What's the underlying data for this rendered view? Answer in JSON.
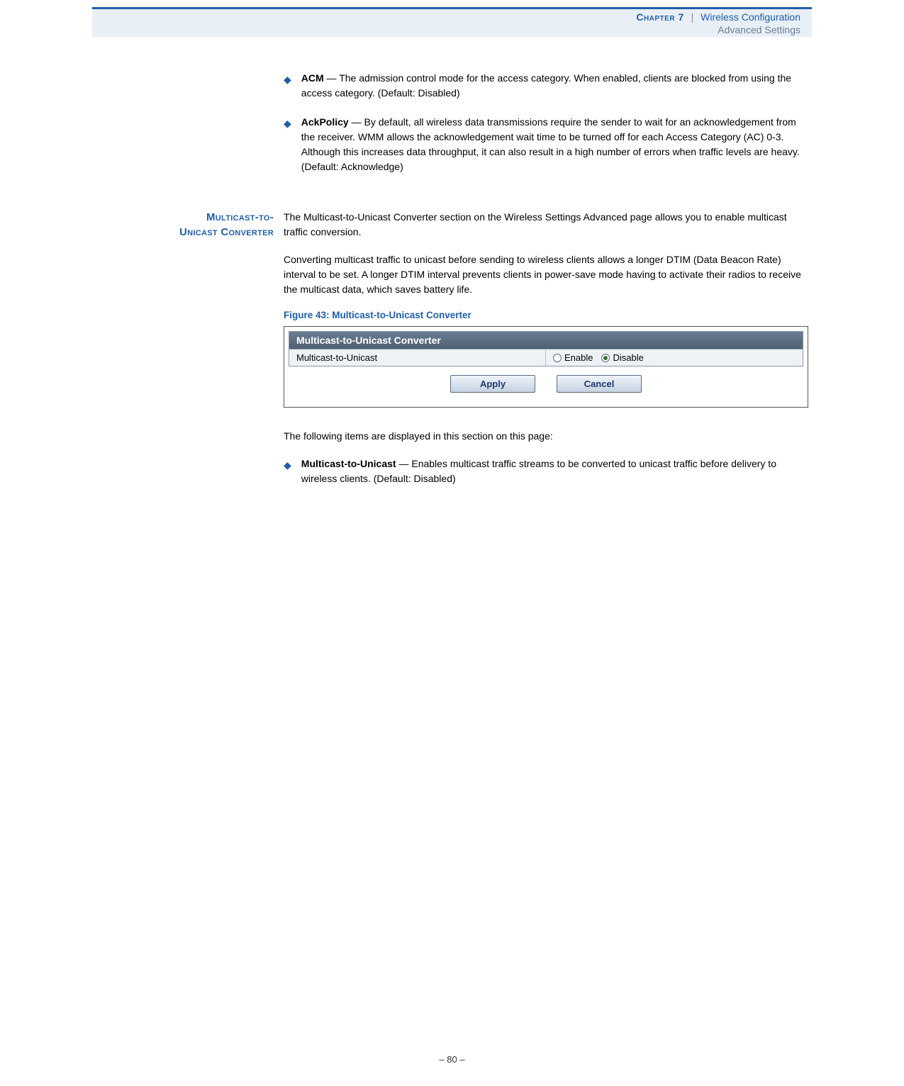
{
  "header": {
    "chapter": "Chapter 7",
    "title": "Wireless Configuration",
    "subtitle": "Advanced Settings"
  },
  "bullets": {
    "acm": {
      "term": "ACM",
      "text": " — The admission control mode for the access category. When enabled, clients are blocked from using the access category. (Default: Disabled)"
    },
    "ackpolicy": {
      "term": "AckPolicy",
      "text": " — By default, all wireless data transmissions require the sender to wait for an acknowledgement from the receiver. WMM allows the acknowledgement wait time to be turned off for each Access Category (AC) 0-3. Although this increases data throughput, it can also result in a high number of errors when traffic levels are heavy. (Default: Acknowledge)"
    }
  },
  "section": {
    "side_label_line1": "Multicast-to-",
    "side_label_line2": "Unicast Converter",
    "para1": "The Multicast-to-Unicast Converter section on the Wireless Settings Advanced page allows you to enable multicast traffic conversion.",
    "para2": "Converting multicast traffic to unicast before sending to wireless clients allows a longer DTIM (Data Beacon Rate) interval to be set. A longer DTIM interval prevents clients in power-save mode having to activate their radios to receive the multicast data, which saves battery life.",
    "figure_caption": "Figure 43:  Multicast-to-Unicast Converter",
    "panel": {
      "title": "Multicast-to-Unicast Converter",
      "row_label": "Multicast-to-Unicast",
      "enable": "Enable",
      "disable": "Disable",
      "apply": "Apply",
      "cancel": "Cancel"
    },
    "follow_text": "The following items are displayed in this section on this page:",
    "mtu_bullet": {
      "term": "Multicast-to-Unicast",
      "text": " — Enables multicast traffic streams to be converted to unicast traffic before delivery to wireless clients. (Default: Disabled)"
    }
  },
  "page_num": "–  80  –"
}
